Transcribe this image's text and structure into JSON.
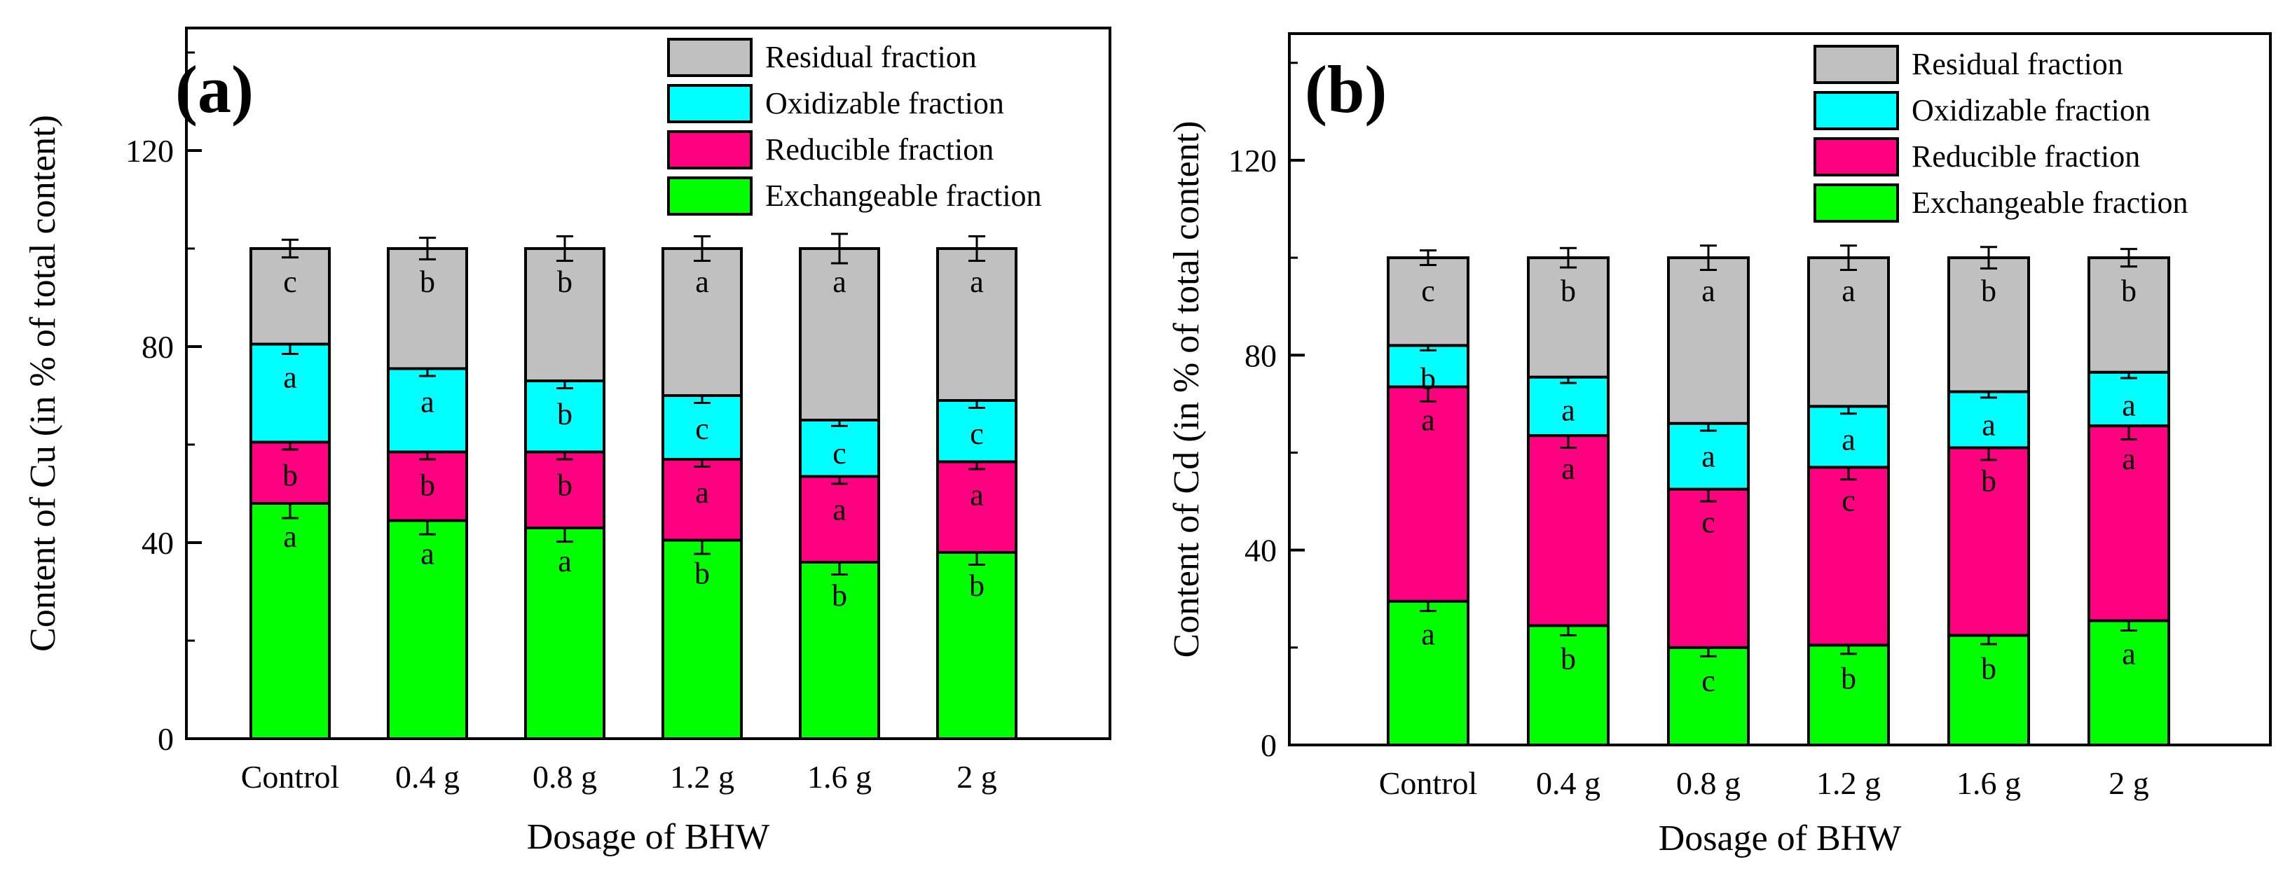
{
  "colors": {
    "residual": "#c0c0c0",
    "oxidizable": "#00ffff",
    "reducible": "#ff0080",
    "exchangeable": "#00ff00"
  },
  "chart_data": [
    {
      "type": "bar",
      "stacked": true,
      "panel_label": "(a)",
      "xlabel": "Dosage of BHW",
      "ylabel": "Content of Cu (in % of total content)",
      "ylim": [
        0,
        145
      ],
      "yticks": [
        "0",
        "40",
        "80",
        "120"
      ],
      "legend_position": "top-right",
      "categories": [
        "Control",
        "0.4 g",
        "0.8 g",
        "1.2 g",
        "1.6 g",
        "2 g"
      ],
      "series": [
        {
          "name": "Exchangeable fraction",
          "key": "exchangeable",
          "values": [
            48,
            44.5,
            43,
            40.5,
            36,
            38
          ],
          "errors": [
            3,
            2.8,
            2.8,
            2.8,
            2.5,
            2.5
          ],
          "letters": [
            "a",
            "a",
            "a",
            "b",
            "b",
            "b"
          ]
        },
        {
          "name": "Reducible fraction",
          "key": "reducible",
          "values": [
            12.5,
            14,
            15.5,
            16.5,
            17.5,
            18.5
          ],
          "errors": [
            1.5,
            1.5,
            1.5,
            1.5,
            1.5,
            1.5
          ],
          "letters": [
            "b",
            "b",
            "b",
            "a",
            "a",
            "a"
          ]
        },
        {
          "name": "Oxidizable fraction",
          "key": "oxidizable",
          "values": [
            20,
            17,
            14.5,
            13,
            11.5,
            12.5
          ],
          "errors": [
            2,
            1.5,
            1.5,
            1.5,
            1.2,
            1.5
          ],
          "letters": [
            "a",
            "a",
            "b",
            "c",
            "c",
            "c"
          ]
        },
        {
          "name": "Residual fraction",
          "key": "residual",
          "values": [
            19.5,
            24.5,
            27,
            30,
            35,
            31
          ],
          "errors": [
            1.8,
            2.2,
            2.5,
            2.5,
            3,
            2.5
          ],
          "letters": [
            "c",
            "b",
            "b",
            "a",
            "a",
            "a"
          ]
        }
      ]
    },
    {
      "type": "bar",
      "stacked": true,
      "panel_label": "(b)",
      "xlabel": "Dosage of BHW",
      "ylabel": "Content of Cd (in % of total content)",
      "ylim": [
        0,
        146
      ],
      "yticks": [
        "0",
        "40",
        "80",
        "120"
      ],
      "legend_position": "top-right",
      "categories": [
        "Control",
        "0.4 g",
        "0.8 g",
        "1.2 g",
        "1.6 g",
        "2 g"
      ],
      "series": [
        {
          "name": "Exchangeable fraction",
          "key": "exchangeable",
          "values": [
            29.5,
            24.5,
            20,
            20.5,
            22.5,
            25.5
          ],
          "errors": [
            2,
            2,
            1.8,
            1.8,
            1.8,
            2
          ],
          "letters": [
            "a",
            "b",
            "c",
            "b",
            "b",
            "a"
          ]
        },
        {
          "name": "Reducible fraction",
          "key": "reducible",
          "values": [
            44,
            39,
            32.5,
            36.5,
            38.5,
            40
          ],
          "errors": [
            3,
            2.5,
            2.5,
            2.5,
            2.5,
            2.8
          ],
          "letters": [
            "a",
            "a",
            "c",
            "c",
            "b",
            "a"
          ]
        },
        {
          "name": "Oxidizable fraction",
          "key": "oxidizable",
          "values": [
            8.5,
            12,
            13.5,
            12.5,
            11.5,
            11
          ],
          "errors": [
            1,
            1.2,
            1.5,
            1.5,
            1.2,
            1.2
          ],
          "letters": [
            "b",
            "a",
            "a",
            "a",
            "a",
            "a"
          ]
        },
        {
          "name": "Residual fraction",
          "key": "residual",
          "values": [
            18,
            24.5,
            34,
            30.5,
            27.5,
            23.5
          ],
          "errors": [
            1.5,
            2,
            2.5,
            2.5,
            2.2,
            1.8
          ],
          "letters": [
            "c",
            "b",
            "a",
            "a",
            "b",
            "b"
          ]
        }
      ]
    }
  ]
}
